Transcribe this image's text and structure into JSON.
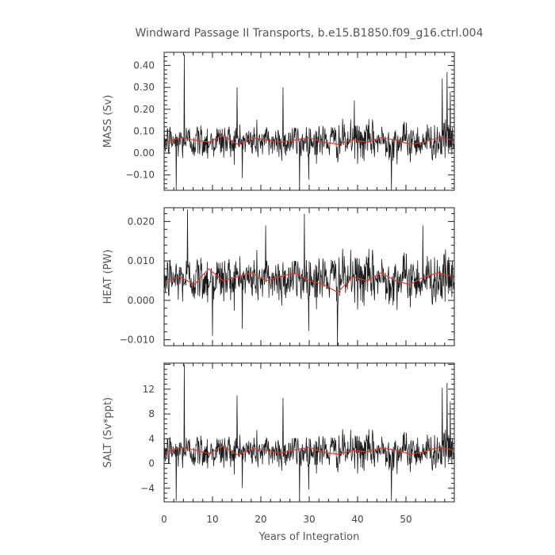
{
  "title": "Windward Passage II Transports, b.e15.B1850.f09_g16.ctrl.004",
  "colors": {
    "raw": "#1a1a1a",
    "smooth": "#e03a2a",
    "frame": "#222222"
  },
  "chart_data": [
    {
      "type": "line",
      "ylabel": "MASS (Sv)",
      "xlim": [
        0,
        60
      ],
      "ylim": [
        -0.17,
        0.46
      ],
      "yticks": [
        -0.1,
        0.0,
        0.1,
        0.2,
        0.3,
        0.4
      ],
      "ytick_labels": [
        "−0.10",
        "0.00",
        "0.10",
        "0.20",
        "0.30",
        "0.40"
      ],
      "mean": 0.055,
      "amplitude": 0.06,
      "spikes": [
        [
          4.2,
          0.45
        ],
        [
          2.5,
          -0.17
        ],
        [
          15.1,
          0.3
        ],
        [
          24.6,
          0.3
        ],
        [
          28.0,
          -0.17
        ],
        [
          39.3,
          0.24
        ],
        [
          47.0,
          -0.17
        ],
        [
          57.5,
          0.34
        ],
        [
          58.5,
          0.37
        ],
        [
          59.2,
          0.28
        ]
      ],
      "smooth": [
        0.05,
        0.07,
        0.06,
        0.05,
        0.08,
        0.04,
        0.07,
        0.06,
        0.05,
        0.06,
        0.07,
        0.05,
        0.04,
        0.06,
        0.05,
        0.07,
        0.06,
        0.04,
        0.05,
        0.07,
        0.06
      ],
      "series": [
        {
          "name": "",
          "x_step": 0.083,
          "note": "monthly values, plotted as thin black line"
        },
        {
          "name": "",
          "note": "smoothed series, plotted as red line"
        }
      ]
    },
    {
      "type": "line",
      "ylabel": "HEAT (PW)",
      "xlim": [
        0,
        60
      ],
      "ylim": [
        -0.0115,
        0.0235
      ],
      "yticks": [
        -0.01,
        0.0,
        0.01,
        0.02
      ],
      "ytick_labels": [
        "−0.010",
        "0.000",
        "0.010",
        "0.020"
      ],
      "mean": 0.0055,
      "amplitude": 0.0045,
      "spikes": [
        [
          4.8,
          0.023
        ],
        [
          10.0,
          -0.009
        ],
        [
          29.0,
          0.022
        ],
        [
          35.8,
          -0.0115
        ],
        [
          21.0,
          0.019
        ],
        [
          53.5,
          0.019
        ]
      ],
      "smooth": [
        0.005,
        0.006,
        0.004,
        0.008,
        0.005,
        0.006,
        0.007,
        0.005,
        0.006,
        0.007,
        0.005,
        0.004,
        0.002,
        0.006,
        0.005,
        0.007,
        0.005,
        0.004,
        0.006,
        0.007,
        0.006
      ],
      "series": [
        {
          "name": ""
        },
        {
          "name": ""
        }
      ]
    },
    {
      "type": "line",
      "ylabel": "SALT (Sv*ppt)",
      "xlim": [
        0,
        60
      ],
      "ylim": [
        -6.2,
        16.2
      ],
      "yticks": [
        -4,
        0,
        4,
        8,
        12
      ],
      "ytick_labels": [
        "−4",
        "0",
        "4",
        "8",
        "12"
      ],
      "mean": 2.0,
      "amplitude": 2.1,
      "spikes": [
        [
          4.2,
          16.0
        ],
        [
          2.5,
          -6.0
        ],
        [
          15.1,
          11.0
        ],
        [
          24.6,
          10.6
        ],
        [
          28.0,
          -6.0
        ],
        [
          47.0,
          -6.0
        ],
        [
          57.5,
          12.2
        ],
        [
          58.5,
          13.0
        ],
        [
          59.2,
          10.0
        ]
      ],
      "smooth": [
        1.8,
        2.6,
        2.2,
        1.6,
        2.8,
        1.4,
        2.5,
        2.1,
        1.7,
        2.2,
        2.6,
        1.8,
        1.5,
        2.1,
        1.9,
        2.5,
        2.2,
        1.5,
        1.9,
        2.6,
        2.2
      ],
      "series": [
        {
          "name": ""
        },
        {
          "name": ""
        }
      ]
    }
  ],
  "xaxis": {
    "label": "Years of Integration",
    "ticks": [
      0,
      10,
      20,
      30,
      40,
      50
    ],
    "tick_labels": [
      "0",
      "10",
      "20",
      "30",
      "40",
      "50"
    ]
  }
}
